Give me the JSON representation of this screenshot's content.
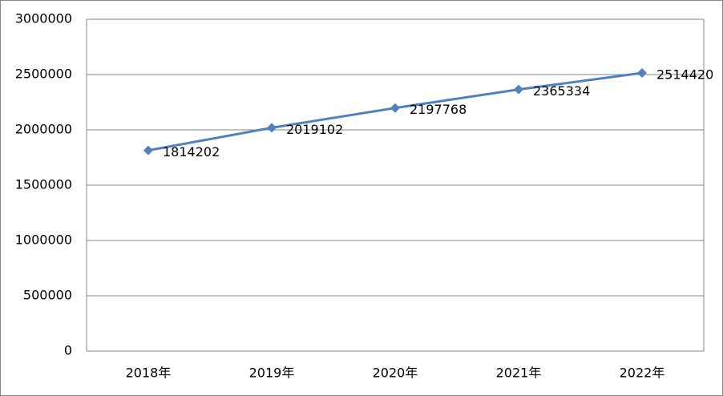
{
  "chart_data": {
    "type": "line",
    "categories": [
      "2018年",
      "2019年",
      "2020年",
      "2021年",
      "2022年"
    ],
    "series": [
      {
        "color": "#4f81bd",
        "values": [
          1814202,
          2019102,
          2197768,
          2365334,
          2514420
        ]
      }
    ],
    "ylim": [
      0,
      3000000
    ],
    "yticks": [
      0,
      500000,
      1000000,
      1500000,
      2000000,
      2500000,
      3000000
    ],
    "grid": true,
    "data_labels": true
  }
}
